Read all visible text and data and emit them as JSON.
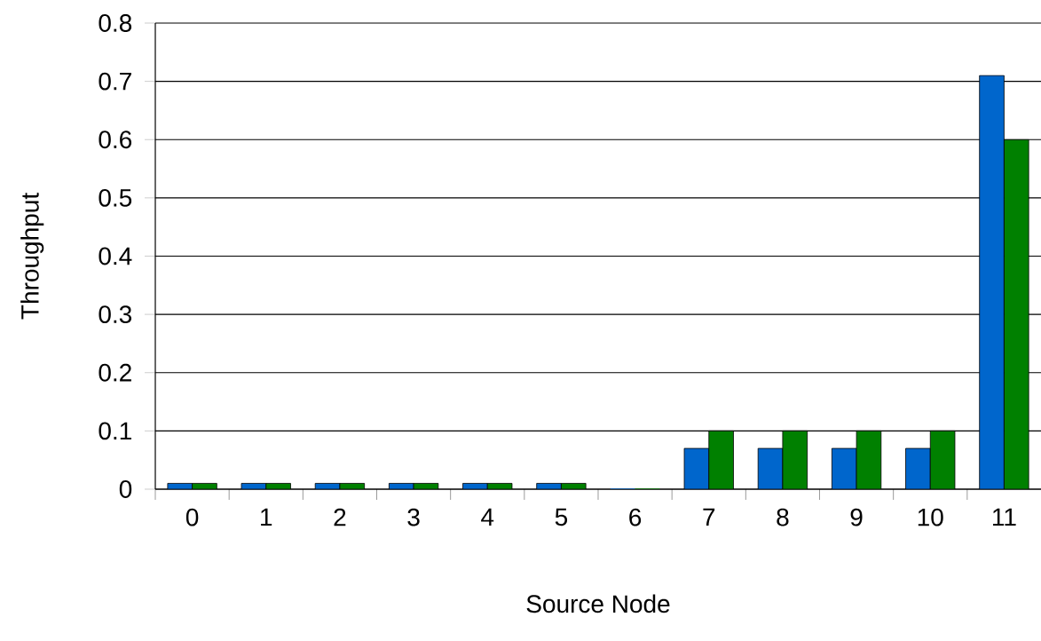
{
  "chart_data": {
    "type": "bar",
    "xlabel": "Source Node",
    "ylabel": "Throughput",
    "categories": [
      "0",
      "1",
      "2",
      "3",
      "4",
      "5",
      "6",
      "7",
      "8",
      "9",
      "10",
      "11"
    ],
    "series": [
      {
        "color": "#0066cc",
        "values": [
          0.01,
          0.01,
          0.01,
          0.01,
          0.01,
          0.01,
          0,
          0.07,
          0.07,
          0.07,
          0.07,
          0.71
        ]
      },
      {
        "color": "#008000",
        "values": [
          0.01,
          0.01,
          0.01,
          0.01,
          0.01,
          0.01,
          0,
          0.1,
          0.1,
          0.1,
          0.1,
          0.6
        ]
      }
    ],
    "ylim": [
      0,
      0.8
    ],
    "yticks": [
      0,
      0.1,
      0.2,
      0.3,
      0.4,
      0.5,
      0.6,
      0.7,
      0.8
    ],
    "grid": "y"
  }
}
